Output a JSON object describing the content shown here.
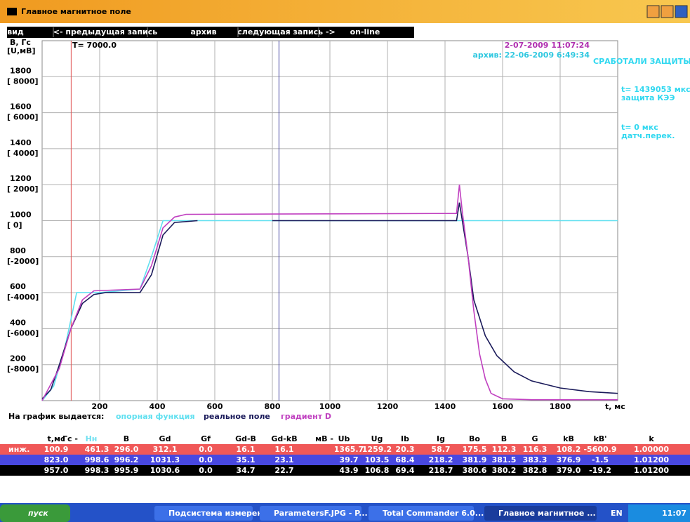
{
  "window": {
    "title": "Главное магнитное поле"
  },
  "menu": [
    "вид",
    "<- предыдущая запись",
    "архив",
    "следующая запись ->",
    "on-line"
  ],
  "chart_data": {
    "type": "line",
    "y_label": "B, Гс",
    "y2_label": "[U,мВ]",
    "x_label": "t, мс",
    "cursor_label": "T= 7000.0",
    "timestamp": "2-07-2009 11:07:24",
    "archive": "архив: 22-06-2009  6:49:34",
    "alarm": "СРАБОТАЛИ ЗАЩИТЫ",
    "events": [
      {
        "time": "t= 1439053 мкс",
        "name": "защита КЭЭ"
      },
      {
        "time": "t=      0 мкс",
        "name": "датч.перек."
      }
    ],
    "legend_title": "На график выдается:",
    "xlim": [
      0,
      2000
    ],
    "xticks": [
      200,
      400,
      600,
      800,
      1000,
      1200,
      1400,
      1600,
      1800
    ],
    "ylim": [
      0,
      2000
    ],
    "yticks": [
      200,
      400,
      600,
      800,
      1000,
      1200,
      1400,
      1600,
      1800
    ],
    "y2lim": [
      -10000,
      10000
    ],
    "y2ticks": [
      {
        "value": -8000,
        "label": "[-8000]"
      },
      {
        "value": -6000,
        "label": "[-6000]"
      },
      {
        "value": -4000,
        "label": "[-4000]"
      },
      {
        "value": -2000,
        "label": "[-2000]"
      },
      {
        "value": 0,
        "label": "[    0]"
      },
      {
        "value": 2000,
        "label": "[ 2000]"
      },
      {
        "value": 4000,
        "label": "[ 4000]"
      },
      {
        "value": 6000,
        "label": "[ 6000]"
      },
      {
        "value": 8000,
        "label": "[ 8000]"
      }
    ],
    "grid": true,
    "cursors": [
      {
        "x": 100.9,
        "color": "#e05050"
      },
      {
        "x": 823,
        "color": "#4040a0"
      }
    ],
    "series": [
      {
        "name": "опорная функция",
        "color": "#60e0f0",
        "x": [
          0,
          40,
          80,
          120,
          200,
          340,
          380,
          420,
          460,
          2000
        ],
        "values": [
          0,
          80,
          300,
          600,
          600,
          620,
          800,
          1000,
          1000,
          1000
        ]
      },
      {
        "name": "реальное поле",
        "color": "#1a1a5a",
        "x": [
          0,
          30,
          60,
          100,
          140,
          180,
          220,
          340,
          380,
          420,
          460,
          540,
          700,
          800,
          1440,
          1450,
          1460,
          1480,
          1500,
          1540,
          1580,
          1640,
          1700,
          1800,
          1900,
          2000
        ],
        "values": [
          10,
          60,
          200,
          400,
          540,
          590,
          600,
          600,
          700,
          920,
          990,
          1000,
          null,
          1000,
          1000,
          1100,
          1000,
          800,
          560,
          360,
          250,
          160,
          110,
          70,
          50,
          40
        ]
      },
      {
        "name": "градиент D",
        "color": "#c040c0",
        "x": [
          0,
          60,
          100,
          140,
          180,
          340,
          380,
          420,
          460,
          500,
          1440,
          1450,
          1460,
          1480,
          1500,
          1520,
          1540,
          1560,
          1600,
          1700,
          2000
        ],
        "values": [
          0,
          180,
          400,
          560,
          610,
          620,
          750,
          960,
          1020,
          1035,
          1040,
          1200,
          1050,
          800,
          500,
          260,
          120,
          40,
          10,
          5,
          5
        ]
      }
    ]
  },
  "table": {
    "unit_labels": [
      "Гс -",
      "мВ -"
    ],
    "headers": [
      "t,мс",
      "Нн",
      "B",
      "Gd",
      "Gf",
      "Gd-B",
      "Gd-kB",
      "Ub",
      "Ug",
      "Ib",
      "Ig",
      "Bo",
      "B",
      "G",
      "kB",
      "kB'",
      "k"
    ],
    "rows": [
      {
        "label": "инж.",
        "cells": [
          "100.9",
          "461.3",
          "296.0",
          "312.1",
          "0.0",
          "16.1",
          "16.1",
          "1365.7",
          "1259.2",
          "20.3",
          "58.7",
          "175.5",
          "112.3",
          "116.3",
          "108.2",
          "-5600.9",
          "1.00000"
        ]
      },
      {
        "cells": [
          "823.0",
          "998.6",
          "996.2",
          "1031.3",
          "0.0",
          "35.1",
          "23.1",
          "39.7",
          "103.5",
          "68.4",
          "218.2",
          "381.9",
          "381.5",
          "383.3",
          "376.9",
          "-1.5",
          "1.01200"
        ]
      },
      {
        "cells": [
          "957.0",
          "998.3",
          "995.9",
          "1030.6",
          "0.0",
          "34.7",
          "22.7",
          "43.9",
          "106.8",
          "69.4",
          "218.7",
          "380.6",
          "380.2",
          "382.8",
          "379.0",
          "-19.2",
          "1.01200"
        ]
      }
    ]
  },
  "taskbar": {
    "start": "пуск",
    "tasks": [
      "Подсистема измерен...",
      "ParametersF.JPG - P...",
      "Total Commander 6.0...",
      "Главное магнитное ..."
    ],
    "language": "EN",
    "clock": "11:07"
  }
}
